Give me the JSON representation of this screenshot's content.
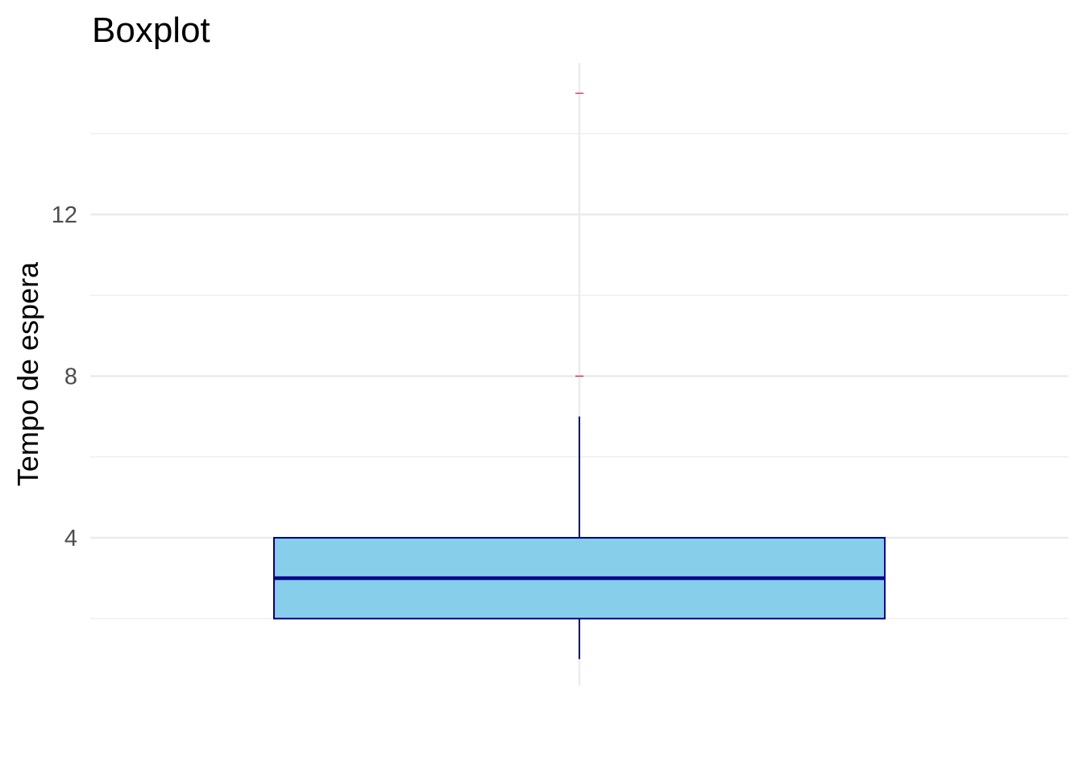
{
  "chart_data": {
    "type": "boxplot",
    "title": "Boxplot",
    "xlabel": "",
    "ylabel": "Tempo de espera",
    "ylim": [
      0.35,
      15.75
    ],
    "y_ticks": [
      4,
      8,
      12
    ],
    "y_minor_ticks": [
      2,
      6,
      10,
      14
    ],
    "y_tick_labels": [
      "4",
      "8",
      "12"
    ],
    "grid": true,
    "series": [
      {
        "whisker_low": 1,
        "q1": 2,
        "median": 3,
        "q3": 4,
        "whisker_high": 7,
        "outliers": [
          8,
          15
        ]
      }
    ],
    "colors": {
      "box_fill": "#87ceeb",
      "box_stroke": "#00008b",
      "outlier": "#dc143c",
      "grid": "#ebebeb"
    }
  }
}
